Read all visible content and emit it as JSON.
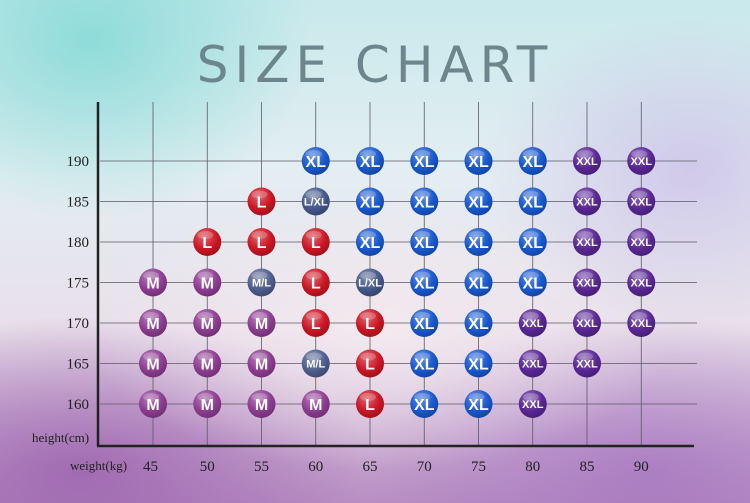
{
  "chart_data": {
    "type": "table",
    "title": "SIZE CHART",
    "xlabel": "weight(kg)",
    "ylabel": "height(cm)",
    "x": [
      45,
      50,
      55,
      60,
      65,
      70,
      75,
      80,
      85,
      90
    ],
    "y": [
      160,
      165,
      170,
      175,
      180,
      185,
      190
    ],
    "grid": true,
    "colors": {
      "M": "#8e3d92",
      "L": "#cc1624",
      "XL": "#1858cf",
      "XXL": "#5a2796",
      "M/L": "#4e5f8e",
      "L/XL": "#44588c"
    },
    "cells": [
      {
        "weight": 45,
        "height": 160,
        "size": "M"
      },
      {
        "weight": 45,
        "height": 165,
        "size": "M"
      },
      {
        "weight": 45,
        "height": 170,
        "size": "M"
      },
      {
        "weight": 45,
        "height": 175,
        "size": "M"
      },
      {
        "weight": 50,
        "height": 160,
        "size": "M"
      },
      {
        "weight": 50,
        "height": 165,
        "size": "M"
      },
      {
        "weight": 50,
        "height": 170,
        "size": "M"
      },
      {
        "weight": 50,
        "height": 175,
        "size": "M"
      },
      {
        "weight": 50,
        "height": 180,
        "size": "L"
      },
      {
        "weight": 55,
        "height": 160,
        "size": "M"
      },
      {
        "weight": 55,
        "height": 165,
        "size": "M"
      },
      {
        "weight": 55,
        "height": 170,
        "size": "M"
      },
      {
        "weight": 55,
        "height": 175,
        "size": "M/L"
      },
      {
        "weight": 55,
        "height": 180,
        "size": "L"
      },
      {
        "weight": 55,
        "height": 185,
        "size": "L"
      },
      {
        "weight": 60,
        "height": 160,
        "size": "M"
      },
      {
        "weight": 60,
        "height": 165,
        "size": "M/L"
      },
      {
        "weight": 60,
        "height": 170,
        "size": "L"
      },
      {
        "weight": 60,
        "height": 175,
        "size": "L"
      },
      {
        "weight": 60,
        "height": 180,
        "size": "L"
      },
      {
        "weight": 60,
        "height": 185,
        "size": "L/XL"
      },
      {
        "weight": 60,
        "height": 190,
        "size": "XL"
      },
      {
        "weight": 65,
        "height": 160,
        "size": "L"
      },
      {
        "weight": 65,
        "height": 165,
        "size": "L"
      },
      {
        "weight": 65,
        "height": 170,
        "size": "L"
      },
      {
        "weight": 65,
        "height": 175,
        "size": "L/XL"
      },
      {
        "weight": 65,
        "height": 180,
        "size": "XL"
      },
      {
        "weight": 65,
        "height": 185,
        "size": "XL"
      },
      {
        "weight": 65,
        "height": 190,
        "size": "XL"
      },
      {
        "weight": 70,
        "height": 160,
        "size": "XL"
      },
      {
        "weight": 70,
        "height": 165,
        "size": "XL"
      },
      {
        "weight": 70,
        "height": 170,
        "size": "XL"
      },
      {
        "weight": 70,
        "height": 175,
        "size": "XL"
      },
      {
        "weight": 70,
        "height": 180,
        "size": "XL"
      },
      {
        "weight": 70,
        "height": 185,
        "size": "XL"
      },
      {
        "weight": 70,
        "height": 190,
        "size": "XL"
      },
      {
        "weight": 75,
        "height": 160,
        "size": "XL"
      },
      {
        "weight": 75,
        "height": 165,
        "size": "XL"
      },
      {
        "weight": 75,
        "height": 170,
        "size": "XL"
      },
      {
        "weight": 75,
        "height": 175,
        "size": "XL"
      },
      {
        "weight": 75,
        "height": 180,
        "size": "XL"
      },
      {
        "weight": 75,
        "height": 185,
        "size": "XL"
      },
      {
        "weight": 75,
        "height": 190,
        "size": "XL"
      },
      {
        "weight": 80,
        "height": 160,
        "size": "XXL"
      },
      {
        "weight": 80,
        "height": 165,
        "size": "XXL"
      },
      {
        "weight": 80,
        "height": 170,
        "size": "XXL"
      },
      {
        "weight": 80,
        "height": 175,
        "size": "XL"
      },
      {
        "weight": 80,
        "height": 180,
        "size": "XL"
      },
      {
        "weight": 80,
        "height": 185,
        "size": "XL"
      },
      {
        "weight": 80,
        "height": 190,
        "size": "XL"
      },
      {
        "weight": 85,
        "height": 165,
        "size": "XXL"
      },
      {
        "weight": 85,
        "height": 170,
        "size": "XXL"
      },
      {
        "weight": 85,
        "height": 175,
        "size": "XXL"
      },
      {
        "weight": 85,
        "height": 180,
        "size": "XXL"
      },
      {
        "weight": 85,
        "height": 185,
        "size": "XXL"
      },
      {
        "weight": 85,
        "height": 190,
        "size": "XXL"
      },
      {
        "weight": 90,
        "height": 170,
        "size": "XXL"
      },
      {
        "weight": 90,
        "height": 175,
        "size": "XXL"
      },
      {
        "weight": 90,
        "height": 180,
        "size": "XXL"
      },
      {
        "weight": 90,
        "height": 185,
        "size": "XXL"
      },
      {
        "weight": 90,
        "height": 190,
        "size": "XXL"
      }
    ]
  }
}
